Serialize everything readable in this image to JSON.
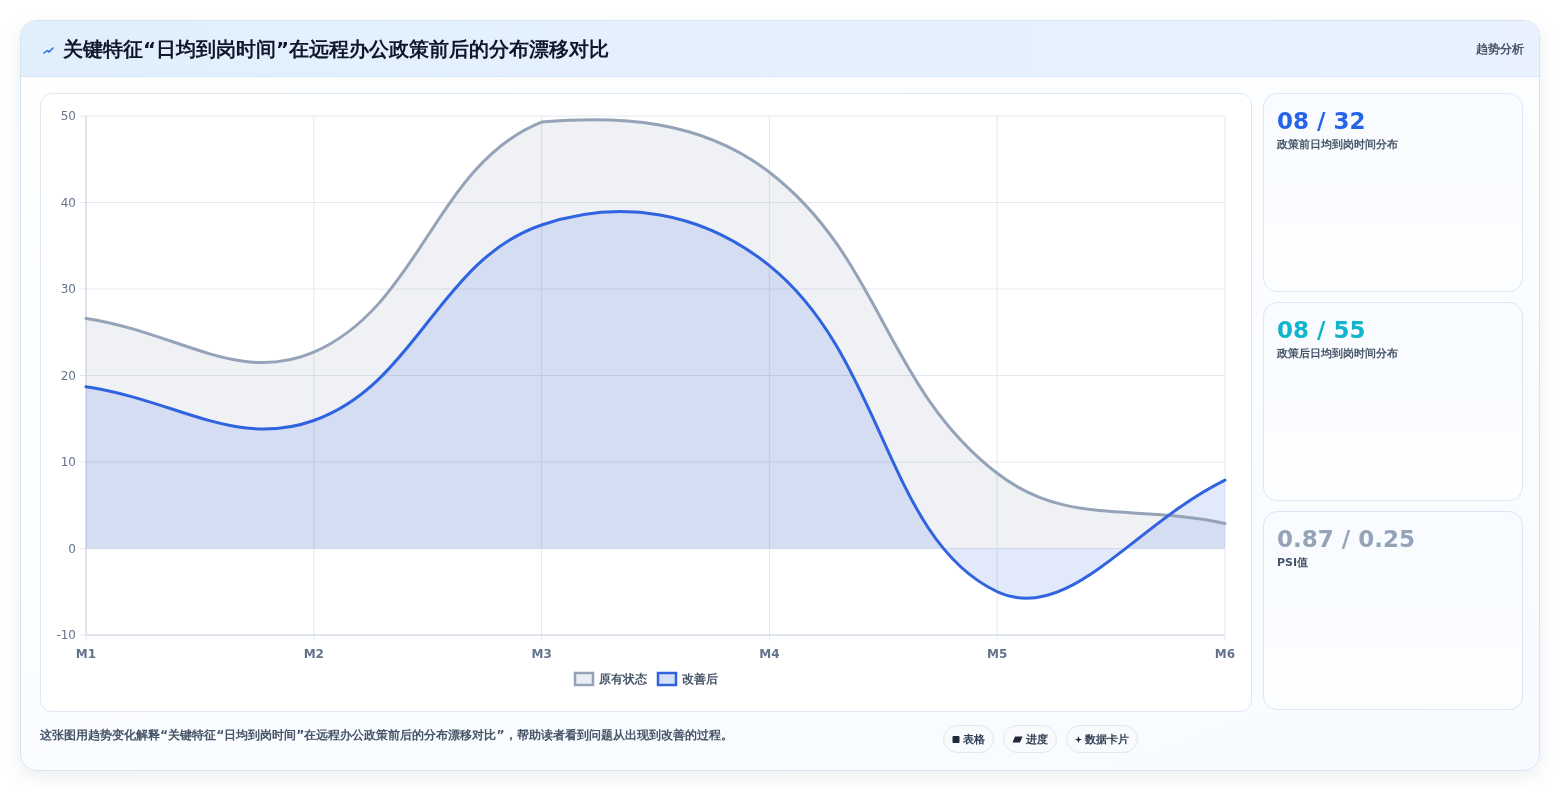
{
  "chart_data": [
    {
      "type": "area",
      "title": "关键特征“日均到岗时间”在远程办公政策前后的分布漂移对比",
      "categories": [
        "M1",
        "M2",
        "M3",
        "M4",
        "M5",
        "M6"
      ],
      "series": [
        {
          "name": "原有状态",
          "color": "#94a3b8",
          "values": [
            26.6,
            22.7,
            49.3,
            43.5,
            8.7,
            2.9
          ]
        },
        {
          "name": "改善后",
          "color": "#2f63e0",
          "values": [
            18.7,
            14.8,
            37.4,
            32.7,
            -5.0,
            7.9
          ]
        }
      ],
      "ylim": [
        -10,
        50
      ],
      "yticks": [
        -10,
        0,
        10,
        20,
        30,
        40,
        50
      ],
      "grid": true,
      "legend": "bottom",
      "annotations": [
        "这张图用趋势变化解释“关键特征“日均到岗时间”在远程办公政策前后的分布漂移对比”，帮助读者看到问题从出现到改善的过程。",
        "表格",
        "进度",
        "数据卡片"
      ]
    },
    {
      "type": "other",
      "title": "08 / 32",
      "subtitle": "政策前日均到岗时间分布",
      "annotations": [
        "趋势分析"
      ]
    },
    {
      "type": "other",
      "title": "08 / 55",
      "subtitle": "政策后日均到岗时间分布"
    },
    {
      "type": "other",
      "title": "0.87 / 0.25",
      "subtitle": "PSI值"
    }
  ]
}
